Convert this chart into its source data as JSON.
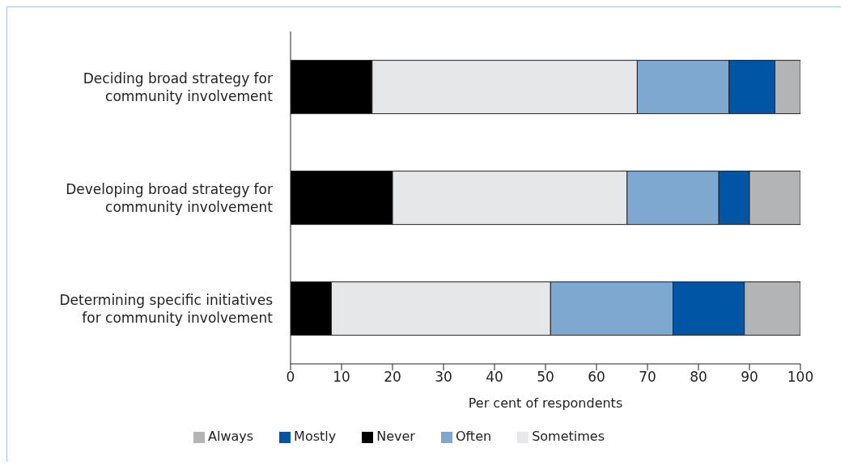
{
  "chart_data": {
    "type": "bar",
    "orientation": "horizontal",
    "stacked": true,
    "xlabel": "Per cent of respondents",
    "categories": [
      "Deciding broad strategy for community involvement",
      "Developing broad strategy for community involvement",
      "Determining specific initiatives for community involvement"
    ],
    "series": [
      {
        "name": "Never",
        "color": "#000000",
        "values": [
          16,
          20,
          8
        ]
      },
      {
        "name": "Sometimes",
        "color": "#e6e7e9",
        "values": [
          52,
          46,
          43
        ]
      },
      {
        "name": "Often",
        "color": "#7fa8d0",
        "values": [
          18,
          18,
          24
        ]
      },
      {
        "name": "Mostly",
        "color": "#0055a4",
        "values": [
          9,
          6,
          14
        ]
      },
      {
        "name": "Always",
        "color": "#b3b4b6",
        "values": [
          5,
          10,
          11
        ]
      }
    ],
    "xlim": [
      0,
      100
    ],
    "xticks": [
      0,
      10,
      20,
      30,
      40,
      50,
      60,
      70,
      80,
      90,
      100
    ],
    "grid": false,
    "legend": "bottom"
  }
}
